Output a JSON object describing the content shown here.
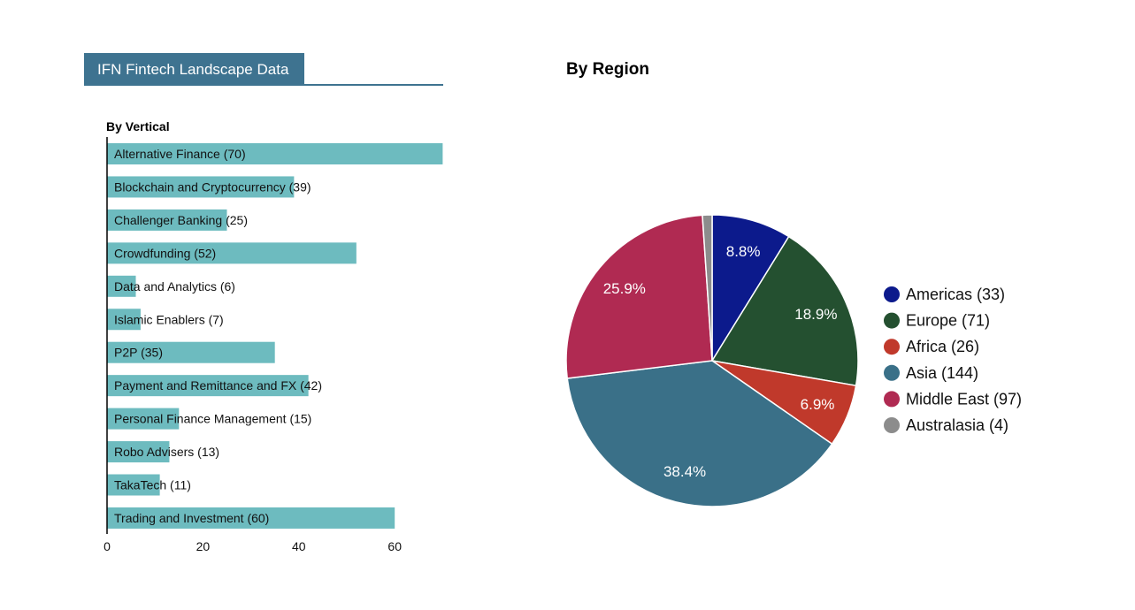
{
  "header": {
    "title": "IFN Fintech Landscape Data"
  },
  "colors": {
    "header": "#3e7390",
    "bar": "#6dbbbf",
    "axis": "#000000"
  },
  "chart_data": [
    {
      "type": "bar",
      "orientation": "horizontal",
      "title": "By Vertical",
      "categories": [
        "Alternative Finance",
        "Blockchain and Cryptocurrency",
        "Challenger Banking",
        "Crowdfunding",
        "Data and Analytics",
        "Islamic Enablers",
        "P2P",
        "Payment and Remittance and FX",
        "Personal Finance Management",
        "Robo Advisers",
        "TakaTech",
        "Trading and Investment"
      ],
      "values": [
        70,
        39,
        25,
        52,
        6,
        7,
        35,
        42,
        15,
        13,
        11,
        60
      ],
      "xlim": [
        0,
        70
      ],
      "xticks": [
        0,
        20,
        40,
        60
      ],
      "xlabel": "",
      "ylabel": ""
    },
    {
      "type": "pie",
      "title": "By Region",
      "labels": [
        "Americas",
        "Europe",
        "Africa",
        "Asia",
        "Middle East",
        "Australasia"
      ],
      "values": [
        33,
        71,
        26,
        144,
        97,
        4
      ],
      "percent_labels": [
        "8.8%",
        "18.9%",
        "6.9%",
        "38.4%",
        "25.9%",
        ""
      ],
      "colors": [
        "#0c1a8c",
        "#245030",
        "#c0392b",
        "#3a7088",
        "#b02a52",
        "#8c8c8c"
      ],
      "legend_position": "right"
    }
  ]
}
